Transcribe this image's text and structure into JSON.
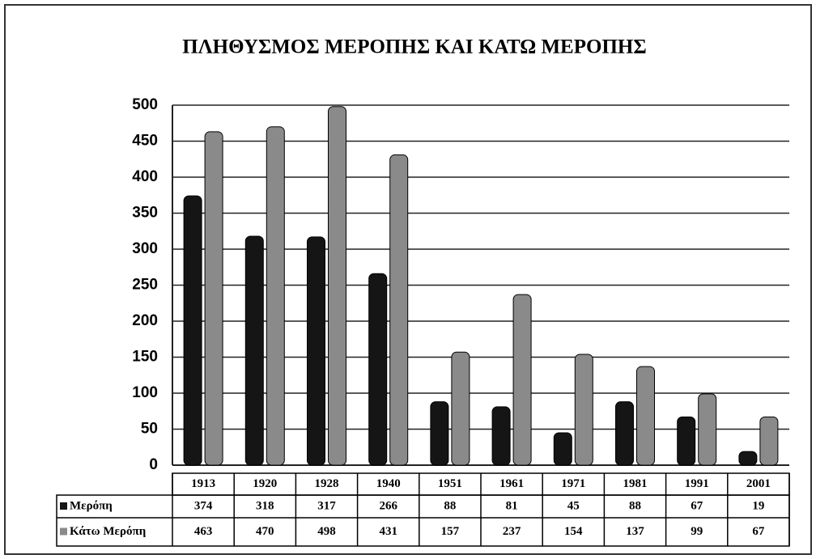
{
  "chart_data": {
    "type": "bar",
    "title": "ΠΛΗΘΥΣΜΟΣ ΜΕΡΟΠΗΣ ΚΑΙ ΚΑΤΩ ΜΕΡΟΠΗΣ",
    "categories": [
      "1913",
      "1920",
      "1928",
      "1940",
      "1951",
      "1961",
      "1971",
      "1981",
      "1991",
      "2001"
    ],
    "series": [
      {
        "name": "Μερόπη",
        "color": "#151515",
        "values": [
          374,
          318,
          317,
          266,
          88,
          81,
          45,
          88,
          67,
          19
        ]
      },
      {
        "name": "Κάτω Μερόπη",
        "color": "#8a8a8a",
        "values": [
          463,
          470,
          498,
          431,
          157,
          237,
          154,
          137,
          99,
          67
        ]
      }
    ],
    "ylim": [
      0,
      500
    ],
    "yticks": [
      0,
      50,
      100,
      150,
      200,
      250,
      300,
      350,
      400,
      450,
      500
    ],
    "grid": true
  }
}
